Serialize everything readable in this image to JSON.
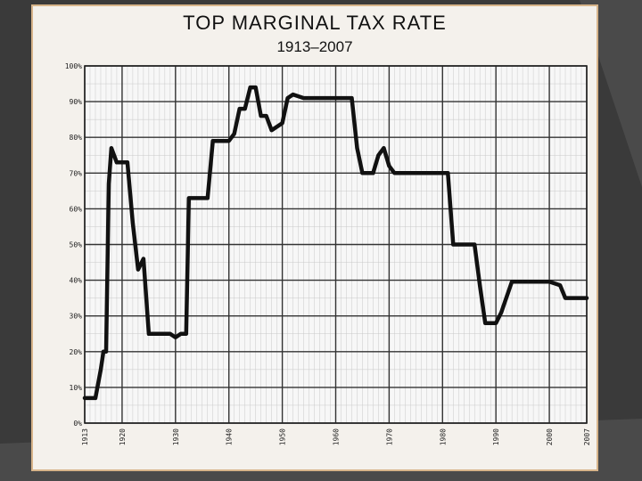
{
  "chart_data": {
    "type": "line",
    "title": "TOP MARGINAL TAX RATE",
    "subtitle": "1913–2007",
    "xlabel": "",
    "ylabel": "",
    "xlim": [
      1913,
      2007
    ],
    "ylim": [
      0,
      100
    ],
    "grid": true,
    "x_ticks": [
      1913,
      1920,
      1930,
      1940,
      1950,
      1960,
      1970,
      1980,
      1990,
      2000,
      2007
    ],
    "y_ticks": [
      {
        "value": 0,
        "label": "0%"
      },
      {
        "value": 10,
        "label": "10%"
      },
      {
        "value": 20,
        "label": "20%"
      },
      {
        "value": 30,
        "label": "30%"
      },
      {
        "value": 40,
        "label": "40%"
      },
      {
        "value": 50,
        "label": "50%"
      },
      {
        "value": 60,
        "label": "60%"
      },
      {
        "value": 70,
        "label": "70%"
      },
      {
        "value": 80,
        "label": "80%"
      },
      {
        "value": 90,
        "label": "90%"
      },
      {
        "value": 100,
        "label": "100%"
      }
    ],
    "series": [
      {
        "name": "",
        "color": "#111111",
        "points": [
          [
            1913,
            7
          ],
          [
            1915,
            7
          ],
          [
            1916,
            15
          ],
          [
            1916.5,
            20
          ],
          [
            1917,
            20
          ],
          [
            1917.5,
            67
          ],
          [
            1918,
            77
          ],
          [
            1919,
            73
          ],
          [
            1921,
            73
          ],
          [
            1922,
            56
          ],
          [
            1923,
            43
          ],
          [
            1924,
            46
          ],
          [
            1925,
            25
          ],
          [
            1929,
            25
          ],
          [
            1930,
            24
          ],
          [
            1931,
            25
          ],
          [
            1932,
            25
          ],
          [
            1932.5,
            63
          ],
          [
            1936,
            63
          ],
          [
            1937,
            79
          ],
          [
            1940,
            79
          ],
          [
            1941,
            81
          ],
          [
            1942,
            88
          ],
          [
            1943,
            88
          ],
          [
            1944,
            94
          ],
          [
            1945,
            94
          ],
          [
            1946,
            86
          ],
          [
            1947,
            86
          ],
          [
            1948,
            82
          ],
          [
            1950,
            84
          ],
          [
            1951,
            91
          ],
          [
            1952,
            92
          ],
          [
            1954,
            91
          ],
          [
            1963,
            91
          ],
          [
            1964,
            77
          ],
          [
            1965,
            70
          ],
          [
            1967,
            70
          ],
          [
            1968,
            75
          ],
          [
            1969,
            77
          ],
          [
            1970,
            72
          ],
          [
            1971,
            70
          ],
          [
            1981,
            70
          ],
          [
            1982,
            50
          ],
          [
            1986,
            50
          ],
          [
            1987,
            38.5
          ],
          [
            1988,
            28
          ],
          [
            1990,
            28
          ],
          [
            1991,
            31
          ],
          [
            1993,
            39.6
          ],
          [
            2000,
            39.6
          ],
          [
            2001,
            39.1
          ],
          [
            2002,
            38.6
          ],
          [
            2003,
            35
          ],
          [
            2007,
            35
          ]
        ]
      }
    ]
  }
}
